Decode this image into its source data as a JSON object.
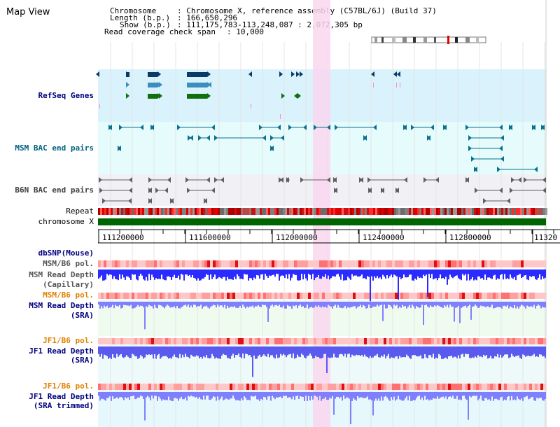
{
  "header": {
    "title": "Map View",
    "chromosome_key": "Chromosome",
    "chromosome_val": ": Chromosome X, reference assembly (C57BL/6J) (Build 37)",
    "length_key": "Length (b.p.)",
    "length_val": ": 166,650,296",
    "show_key": "Show (b.p.)",
    "show_val": ": 111,175,783-113,248,087 : 2,072,305 bp",
    "read_key": "Read coverage check span",
    "read_val": ": 10,000"
  },
  "tracks": {
    "refseq": "RefSeq Genes",
    "msm_bac": "MSM BAC end pairs",
    "b6n_bac": "B6N BAC end pairs",
    "repeat": "Repeat",
    "chrom": "chromosome X",
    "dbsnp": "dbSNP(Mouse)",
    "msm_pol": "MSM/B6 pol.",
    "msm_depth_cap_1": "MSM Read Depth",
    "msm_depth_cap_2": "(Capillary)",
    "msm_pol2": "MSM/B6 pol.",
    "msm_depth_sra_1": "MSM Read Depth",
    "msm_depth_sra_2": "(SRA)",
    "jf1_pol": "JF1/B6 pol.",
    "jf1_depth_1": "JF1 Read Depth",
    "jf1_depth_2": "(SRA)",
    "jf1_pol2": "JF1/B6 pol.",
    "jf1_trim_1": "JF1 Read Depth",
    "jf1_trim_2": "(SRA trimmed)"
  },
  "axis": {
    "ticks": [
      "111200000",
      "111600000",
      "112000000",
      "112400000",
      "112800000",
      "11320"
    ]
  },
  "colors": {
    "refseq_bg": "#d9f2fb",
    "msm_bg": "#e6fbfb",
    "b6n_bg": "#f1f1f5",
    "highlight": "#f9d7ef",
    "chrom_green": "#006400",
    "depth_blue": "#2b2bff",
    "depth_light": "#8080ff",
    "pol_red": "#ff9090",
    "label_navy": "#000080",
    "label_orange": "#e08000",
    "label_teal": "#006080",
    "label_gray": "#404040"
  }
}
